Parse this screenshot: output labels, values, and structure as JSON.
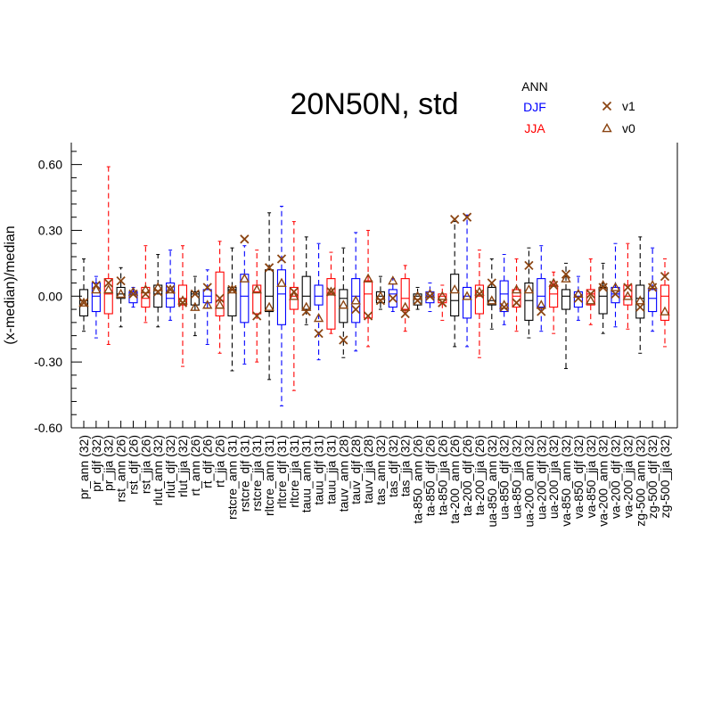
{
  "chart_data": {
    "type": "boxplot",
    "title": "20N50N, std",
    "ylabel": "(x-median)/median",
    "ylim": [
      -0.6,
      0.7
    ],
    "yticks": [
      -0.6,
      -0.3,
      0.0,
      0.3,
      0.6
    ],
    "ytick_labels": [
      "-0.60",
      "-0.30",
      "0.00",
      "0.30",
      "0.60"
    ],
    "season_legend": [
      {
        "label": "ANN",
        "color": "#000000"
      },
      {
        "label": "DJF",
        "color": "#0000ff"
      },
      {
        "label": "JJA",
        "color": "#ff0000"
      }
    ],
    "marker_legend": [
      {
        "label": "v1",
        "marker": "x",
        "color": "#8b4513"
      },
      {
        "label": "v0",
        "marker": "triangle",
        "color": "#8b4513"
      }
    ],
    "categories": [
      "pr_ann (32)",
      "pr_djf (32)",
      "pr_jja (32)",
      "rst_ann (26)",
      "rst_djf (26)",
      "rst_jja (26)",
      "rlut_ann (32)",
      "rlut_djf (32)",
      "rlut_jja (32)",
      "rt_ann (26)",
      "rt_djf (26)",
      "rt_jja (26)",
      "rstcre_ann (31)",
      "rstcre_djf (31)",
      "rstcre_jja (31)",
      "rltcre_ann (31)",
      "rltcre_djf (31)",
      "rltcre_jja (31)",
      "tauu_ann (31)",
      "tauu_djf (31)",
      "tauu_jja (31)",
      "tauv_ann (28)",
      "tauv_djf (28)",
      "tauv_jja (28)",
      "tas_ann (32)",
      "tas_djf (32)",
      "tas_jja (32)",
      "ta-850_ann (26)",
      "ta-850_djf (26)",
      "ta-850_jja (26)",
      "ta-200_ann (26)",
      "ta-200_djf (26)",
      "ta-200_jja (26)",
      "ua-850_ann (32)",
      "ua-850_djf (32)",
      "ua-850_jja (32)",
      "ua-200_ann (32)",
      "ua-200_djf (32)",
      "ua-200_jja (32)",
      "va-850_ann (32)",
      "va-850_djf (32)",
      "va-850_jja (32)",
      "va-200_ann (32)",
      "va-200_djf (32)",
      "va-200_jja (32)",
      "zg-500_ann (32)",
      "zg-500_djf (32)",
      "zg-500_jja (32)"
    ],
    "boxes": [
      {
        "wlo": -0.16,
        "q1": -0.09,
        "med": -0.02,
        "q3": 0.03,
        "whi": 0.17,
        "v1": -0.03,
        "v0": -0.03
      },
      {
        "wlo": -0.19,
        "q1": -0.07,
        "med": 0.0,
        "q3": 0.06,
        "whi": 0.09,
        "v1": 0.05,
        "v0": 0.03
      },
      {
        "wlo": -0.22,
        "q1": -0.08,
        "med": 0.01,
        "q3": 0.08,
        "whi": 0.59,
        "v1": 0.06,
        "v0": 0.03
      },
      {
        "wlo": -0.14,
        "q1": -0.01,
        "med": 0.01,
        "q3": 0.04,
        "whi": 0.13,
        "v1": 0.07,
        "v0": 0.01
      },
      {
        "wlo": -0.05,
        "q1": -0.03,
        "med": 0.01,
        "q3": 0.02,
        "whi": 0.04,
        "v1": 0.01,
        "v0": 0.02
      },
      {
        "wlo": -0.12,
        "q1": -0.05,
        "med": -0.01,
        "q3": 0.04,
        "whi": 0.23,
        "v1": 0.01,
        "v0": 0.03
      },
      {
        "wlo": -0.14,
        "q1": -0.05,
        "med": 0.01,
        "q3": 0.05,
        "whi": 0.19,
        "v1": 0.02,
        "v0": 0.04
      },
      {
        "wlo": -0.11,
        "q1": -0.05,
        "med": -0.01,
        "q3": 0.06,
        "whi": 0.21,
        "v1": 0.03,
        "v0": 0.03
      },
      {
        "wlo": -0.32,
        "q1": -0.04,
        "med": -0.01,
        "q3": 0.05,
        "whi": 0.23,
        "v1": -0.03,
        "v0": -0.02
      },
      {
        "wlo": -0.18,
        "q1": -0.04,
        "med": 0.01,
        "q3": 0.02,
        "whi": 0.09,
        "v1": 0.01,
        "v0": -0.05
      },
      {
        "wlo": -0.22,
        "q1": -0.03,
        "med": 0.0,
        "q3": 0.03,
        "whi": 0.12,
        "v1": 0.04,
        "v0": -0.04
      },
      {
        "wlo": -0.26,
        "q1": -0.09,
        "med": -0.02,
        "q3": 0.11,
        "whi": 0.25,
        "v1": -0.01,
        "v0": -0.04
      },
      {
        "wlo": -0.34,
        "q1": -0.09,
        "med": 0.03,
        "q3": 0.04,
        "whi": 0.22,
        "v1": 0.03,
        "v0": 0.03
      },
      {
        "wlo": -0.31,
        "q1": -0.12,
        "med": 0.0,
        "q3": 0.1,
        "whi": 0.23,
        "v1": 0.26,
        "v0": 0.08
      },
      {
        "wlo": -0.3,
        "q1": -0.08,
        "med": 0.02,
        "q3": 0.05,
        "whi": 0.21,
        "v1": -0.09,
        "v0": 0.03
      },
      {
        "wlo": -0.38,
        "q1": -0.07,
        "med": 0.0,
        "q3": 0.12,
        "whi": 0.38,
        "v1": 0.13,
        "v0": -0.05
      },
      {
        "wlo": -0.5,
        "q1": -0.13,
        "med": 0.01,
        "q3": 0.12,
        "whi": 0.41,
        "v1": 0.17,
        "v0": 0.06
      },
      {
        "wlo": -0.43,
        "q1": -0.06,
        "med": 0.0,
        "q3": 0.04,
        "whi": 0.34,
        "v1": 0.02,
        "v0": 0.0
      },
      {
        "wlo": -0.13,
        "q1": -0.06,
        "med": 0.0,
        "q3": 0.09,
        "whi": 0.27,
        "v1": -0.07,
        "v0": -0.05
      },
      {
        "wlo": -0.29,
        "q1": -0.04,
        "med": 0.0,
        "q3": 0.05,
        "whi": 0.24,
        "v1": -0.17,
        "v0": -0.1
      },
      {
        "wlo": -0.17,
        "q1": -0.15,
        "med": 0.01,
        "q3": 0.08,
        "whi": 0.2,
        "v1": 0.02,
        "v0": 0.02
      },
      {
        "wlo": -0.28,
        "q1": -0.12,
        "med": -0.01,
        "q3": 0.03,
        "whi": 0.22,
        "v1": -0.2,
        "v0": -0.04
      },
      {
        "wlo": -0.25,
        "q1": -0.12,
        "med": 0.0,
        "q3": 0.08,
        "whi": 0.29,
        "v1": -0.06,
        "v0": -0.02
      },
      {
        "wlo": -0.23,
        "q1": -0.1,
        "med": 0.01,
        "q3": 0.07,
        "whi": 0.3,
        "v1": -0.09,
        "v0": 0.08
      },
      {
        "wlo": -0.06,
        "q1": -0.03,
        "med": 0.0,
        "q3": 0.02,
        "whi": 0.09,
        "v1": -0.02,
        "v0": 0.0
      },
      {
        "wlo": -0.07,
        "q1": -0.05,
        "med": 0.01,
        "q3": 0.03,
        "whi": 0.08,
        "v1": -0.01,
        "v0": 0.07
      },
      {
        "wlo": -0.16,
        "q1": -0.06,
        "med": -0.01,
        "q3": 0.08,
        "whi": 0.14,
        "v1": -0.08,
        "v0": -0.05
      },
      {
        "wlo": -0.06,
        "q1": -0.04,
        "med": 0.0,
        "q3": 0.01,
        "whi": 0.04,
        "v1": -0.02,
        "v0": 0.0
      },
      {
        "wlo": -0.07,
        "q1": -0.03,
        "med": 0.0,
        "q3": 0.02,
        "whi": 0.06,
        "v1": 0.0,
        "v0": 0.01
      },
      {
        "wlo": -0.11,
        "q1": -0.03,
        "med": 0.0,
        "q3": 0.01,
        "whi": 0.05,
        "v1": -0.03,
        "v0": 0.0
      },
      {
        "wlo": -0.23,
        "q1": -0.09,
        "med": -0.02,
        "q3": 0.1,
        "whi": 0.34,
        "v1": 0.35,
        "v0": 0.03
      },
      {
        "wlo": -0.23,
        "q1": -0.1,
        "med": 0.0,
        "q3": 0.04,
        "whi": 0.37,
        "v1": 0.36,
        "v0": 0.0
      },
      {
        "wlo": -0.28,
        "q1": -0.08,
        "med": 0.0,
        "q3": 0.05,
        "whi": 0.21,
        "v1": 0.01,
        "v0": 0.02
      },
      {
        "wlo": -0.15,
        "q1": -0.04,
        "med": -0.02,
        "q3": 0.04,
        "whi": 0.17,
        "v1": 0.06,
        "v0": -0.02
      },
      {
        "wlo": -0.13,
        "q1": -0.07,
        "med": 0.01,
        "q3": 0.07,
        "whi": 0.19,
        "v1": -0.05,
        "v0": -0.04
      },
      {
        "wlo": -0.16,
        "q1": -0.05,
        "med": 0.0,
        "q3": 0.03,
        "whi": 0.17,
        "v1": -0.03,
        "v0": 0.03
      },
      {
        "wlo": -0.19,
        "q1": -0.11,
        "med": -0.02,
        "q3": 0.06,
        "whi": 0.22,
        "v1": 0.14,
        "v0": 0.03
      },
      {
        "wlo": -0.16,
        "q1": -0.05,
        "med": 0.0,
        "q3": 0.08,
        "whi": 0.23,
        "v1": -0.07,
        "v0": -0.04
      },
      {
        "wlo": -0.17,
        "q1": -0.05,
        "med": 0.01,
        "q3": 0.05,
        "whi": 0.11,
        "v1": 0.05,
        "v0": 0.06
      },
      {
        "wlo": -0.33,
        "q1": -0.06,
        "med": 0.0,
        "q3": 0.03,
        "whi": 0.15,
        "v1": 0.1,
        "v0": 0.08
      },
      {
        "wlo": -0.11,
        "q1": -0.05,
        "med": 0.0,
        "q3": 0.02,
        "whi": 0.09,
        "v1": -0.01,
        "v0": 0.01
      },
      {
        "wlo": -0.13,
        "q1": -0.04,
        "med": 0.01,
        "q3": 0.03,
        "whi": 0.17,
        "v1": 0.01,
        "v0": -0.02
      },
      {
        "wlo": -0.17,
        "q1": -0.08,
        "med": 0.0,
        "q3": 0.04,
        "whi": 0.15,
        "v1": 0.04,
        "v0": 0.05
      },
      {
        "wlo": -0.14,
        "q1": -0.03,
        "med": 0.01,
        "q3": 0.04,
        "whi": 0.24,
        "v1": 0.01,
        "v0": 0.04
      },
      {
        "wlo": -0.15,
        "q1": -0.04,
        "med": 0.0,
        "q3": 0.05,
        "whi": 0.24,
        "v1": 0.04,
        "v0": 0.0
      },
      {
        "wlo": -0.26,
        "q1": -0.1,
        "med": -0.01,
        "q3": 0.05,
        "whi": 0.27,
        "v1": -0.05,
        "v0": -0.02
      },
      {
        "wlo": -0.16,
        "q1": -0.07,
        "med": -0.01,
        "q3": 0.03,
        "whi": 0.22,
        "v1": 0.04,
        "v0": 0.05
      },
      {
        "wlo": -0.23,
        "q1": -0.11,
        "med": 0.0,
        "q3": 0.05,
        "whi": 0.17,
        "v1": 0.09,
        "v0": -0.07
      }
    ]
  }
}
